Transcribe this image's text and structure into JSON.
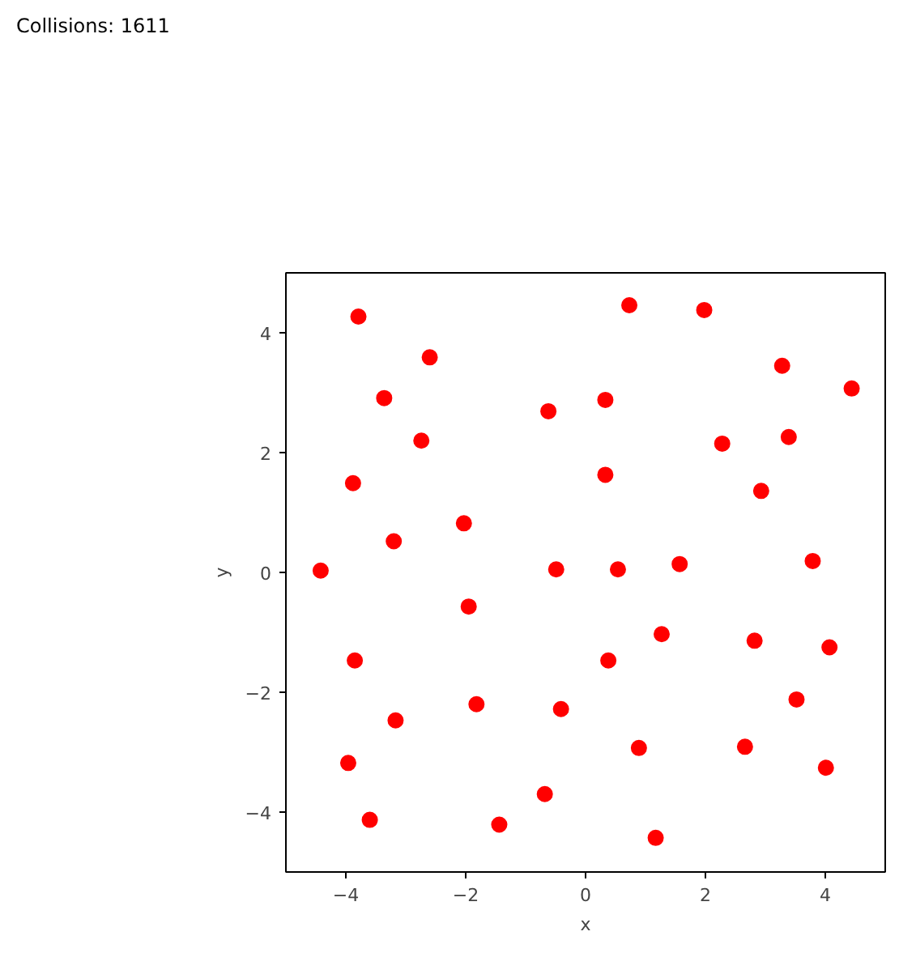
{
  "chart_data": {
    "type": "scatter",
    "title": "Collisions: 1611",
    "xlabel": "x",
    "ylabel": "y",
    "xlim": [
      -5,
      5
    ],
    "ylim": [
      -5,
      5
    ],
    "xticks": [
      -4,
      -2,
      0,
      2,
      4
    ],
    "yticks": [
      -4,
      -2,
      0,
      2,
      4
    ],
    "grid": false,
    "marker": "circle",
    "series": [
      {
        "color": "#ff0000",
        "x": [
          -3.79,
          -2.6,
          -3.36,
          -2.74,
          -3.88,
          -3.2,
          -4.42,
          -2.03,
          -1.95,
          -3.85,
          -3.17,
          -3.96,
          -3.6,
          -1.82,
          -1.44,
          -0.68,
          -0.41,
          -0.49,
          -0.62,
          0.73,
          0.33,
          0.33,
          0.54,
          0.38,
          0.89,
          1.17,
          1.27,
          1.57,
          1.98,
          2.28,
          3.28,
          3.39,
          2.93,
          4.44,
          3.79,
          2.82,
          4.07,
          3.52,
          2.66,
          4.01
        ],
        "values": [
          4.27,
          3.59,
          2.91,
          2.2,
          1.49,
          0.52,
          0.03,
          0.82,
          -0.57,
          -1.47,
          -2.47,
          -3.18,
          -4.13,
          -2.2,
          -4.21,
          -3.7,
          -2.28,
          0.05,
          2.69,
          4.46,
          2.88,
          1.63,
          0.05,
          -1.47,
          -2.93,
          -4.43,
          -1.03,
          0.14,
          4.38,
          2.15,
          3.45,
          2.26,
          1.36,
          3.07,
          0.19,
          -1.14,
          -1.25,
          -2.12,
          -2.91,
          -3.26
        ]
      }
    ]
  }
}
